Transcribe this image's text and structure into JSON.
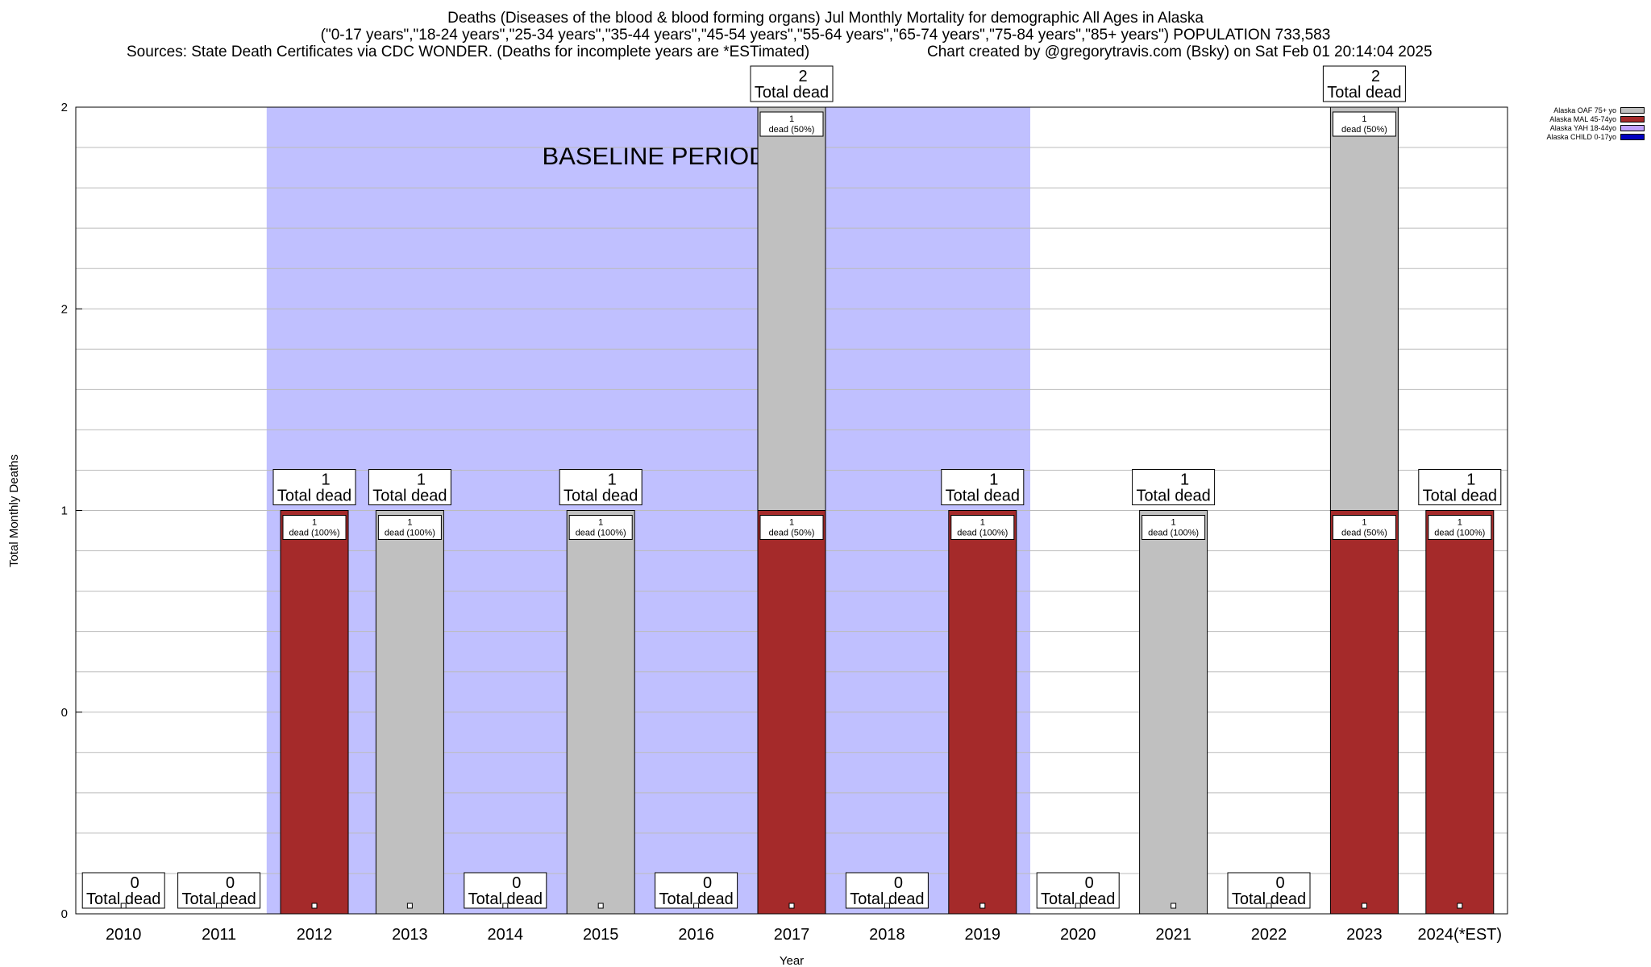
{
  "header": {
    "title_line1": "Deaths (Diseases of the blood & blood forming organs) Jul Monthly Mortality for demographic All Ages in Alaska",
    "title_line2": "(\"0-17 years\",\"18-24 years\",\"25-34 years\",\"35-44 years\",\"45-54 years\",\"55-64 years\",\"65-74 years\",\"75-84 years\",\"85+ years\") POPULATION 733,583",
    "sources": "Sources: State Death Certificates via CDC WONDER. (Deaths for incomplete years are *ESTimated)",
    "credit": "Chart created by @gregorytravis.com (Bsky) on Sat Feb 01 20:14:04 2025"
  },
  "chart_data": {
    "type": "bar",
    "stacked": true,
    "xlabel": "Year",
    "ylabel": "Total Monthly Deaths",
    "categories": [
      "2010",
      "2011",
      "2012",
      "2013",
      "2014",
      "2015",
      "2016",
      "2017",
      "2018",
      "2019",
      "2020",
      "2021",
      "2022",
      "2023",
      "2024(*EST)"
    ],
    "ylim": [
      0,
      2
    ],
    "y_tick_labels": [
      "0",
      "0",
      "1",
      "2",
      "2"
    ],
    "grid": true,
    "baseline_period": {
      "label": "BASELINE PERIOD",
      "start": "2012",
      "end": "2019",
      "color": "#c0c0ff"
    },
    "series": [
      {
        "name": "Alaska CHILD 0-17yo",
        "color": "#0000c0",
        "values": [
          0,
          0,
          0,
          0,
          0,
          0,
          0,
          0,
          0,
          0,
          0,
          0,
          0,
          0,
          0
        ]
      },
      {
        "name": "Alaska YAH 18-44yo",
        "color": "#c0a0ff",
        "values": [
          0,
          0,
          0,
          0,
          0,
          0,
          0,
          0,
          0,
          0,
          0,
          0,
          0,
          0,
          0
        ]
      },
      {
        "name": "Alaska MAL 45-74yo",
        "color": "#a52a2a",
        "values": [
          0,
          0,
          1,
          0,
          0,
          0,
          0,
          1,
          0,
          1,
          0,
          0,
          0,
          1,
          1
        ]
      },
      {
        "name": "Alaska OAF 75+ yo",
        "color": "#c0c0c0",
        "values": [
          0,
          0,
          0,
          1,
          0,
          1,
          0,
          1,
          0,
          0,
          0,
          1,
          0,
          1,
          0
        ]
      }
    ],
    "totals": [
      0,
      0,
      1,
      1,
      0,
      1,
      0,
      2,
      0,
      1,
      0,
      1,
      0,
      2,
      1
    ],
    "total_label_suffix": "Total dead",
    "segment_labels": {
      "2012": [
        "1",
        "dead (100%)"
      ],
      "2013": [
        "1",
        "dead (100%)"
      ],
      "2015": [
        "1",
        "dead (100%)"
      ],
      "2017": [
        [
          "1",
          "dead (50%)"
        ],
        [
          "1",
          "dead (50%)"
        ]
      ],
      "2019": [
        "1",
        "dead (100%)"
      ],
      "2021": [
        "1",
        "dead (100%)"
      ],
      "2023": [
        [
          "1",
          "dead (50%)"
        ],
        [
          "1",
          "dead (50%)"
        ]
      ],
      "2024(*EST)": [
        "1",
        "dead (100%)"
      ]
    },
    "legend_order": [
      "Alaska OAF 75+ yo",
      "Alaska MAL 45-74yo",
      "Alaska YAH 18-44yo",
      "Alaska CHILD 0-17yo"
    ],
    "legend_position": "top-right"
  }
}
